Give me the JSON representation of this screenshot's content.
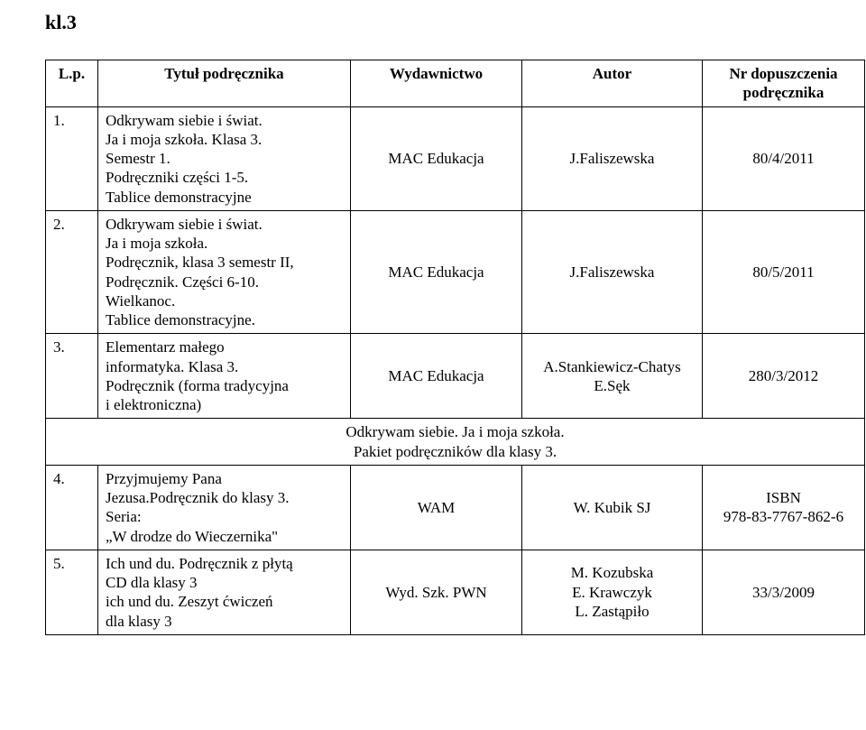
{
  "heading": "kl.3",
  "table": {
    "headers": {
      "lp": "L.p.",
      "title": "Tytuł podręcznika",
      "publisher": "Wydawnictwo",
      "author": "Autor",
      "nr": "Nr dopuszczenia podręcznika"
    },
    "rows": [
      {
        "lp": "1.",
        "title": "Odkrywam siebie i świat.\nJa i moja szkoła. Klasa 3.\nSemestr 1.\nPodręczniki części 1-5.\nTablice demonstracyjne",
        "publisher": "MAC Edukacja",
        "author": "J.Faliszewska",
        "nr": "80/4/2011"
      },
      {
        "lp": "2.",
        "title": "Odkrywam siebie i świat.\nJa i moja szkoła.\nPodręcznik, klasa 3 semestr II,\nPodręcznik. Części 6-10.\nWielkanoc.\nTablice demonstracyjne.",
        "publisher": "MAC Edukacja",
        "author": "J.Faliszewska",
        "nr": "80/5/2011"
      },
      {
        "lp": "3.",
        "title": "Elementarz małego\ninformatyka. Klasa 3.\nPodręcznik (forma tradycyjna\ni elektroniczna)",
        "publisher": "MAC Edukacja",
        "author": "A.Stankiewicz-Chatys\nE.Sęk",
        "nr": "280/3/2012"
      }
    ],
    "spanRow": "Odkrywam siebie. Ja i moja szkoła.\nPakiet podręczników dla klasy 3.",
    "rows2": [
      {
        "lp": "4.",
        "title": "Przyjmujemy Pana\nJezusa.Podręcznik do klasy 3.\nSeria:\n„W drodze do Wieczernika\"",
        "publisher": "WAM",
        "author": "W. Kubik SJ",
        "nr": "ISBN\n978-83-7767-862-6"
      },
      {
        "lp": "5.",
        "title": "Ich und du. Podręcznik z płytą\nCD dla klasy 3\nich und du. Zeszyt ćwiczeń\ndla klasy 3",
        "publisher": "Wyd. Szk. PWN",
        "author": "M. Kozubska\nE. Krawczyk\nL. Zastąpiło",
        "nr": "33/3/2009"
      }
    ]
  }
}
